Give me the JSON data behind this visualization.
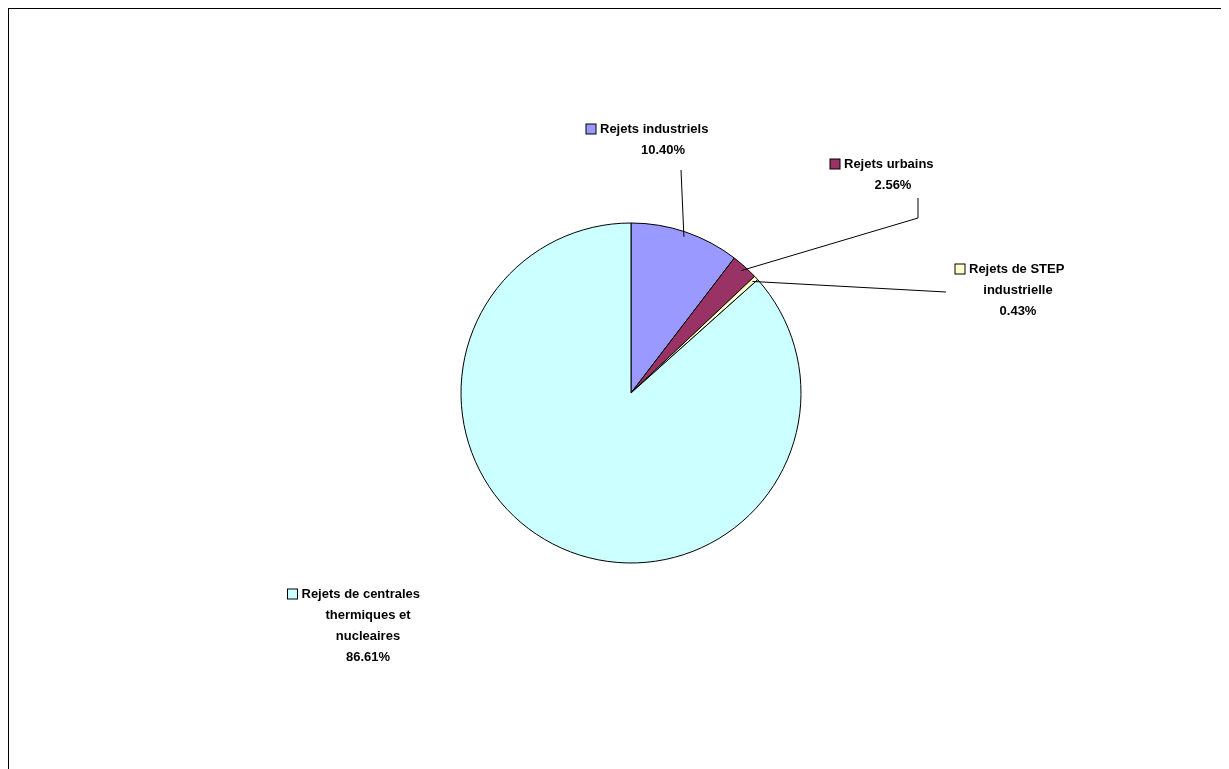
{
  "chart_data": {
    "type": "pie",
    "categories": [
      "Rejets industriels",
      "Rejets urbains",
      "Rejets de STEP industrielle",
      "Rejets de centrales thermiques et nucleaires"
    ],
    "values": [
      10.4,
      2.56,
      0.43,
      86.61
    ],
    "value_labels": [
      "10.40%",
      "2.56%",
      "0.43%",
      "86.61%"
    ],
    "colors": [
      "#9999ff",
      "#993366",
      "#ffffcc",
      "#ccffff"
    ],
    "legend": "right"
  }
}
